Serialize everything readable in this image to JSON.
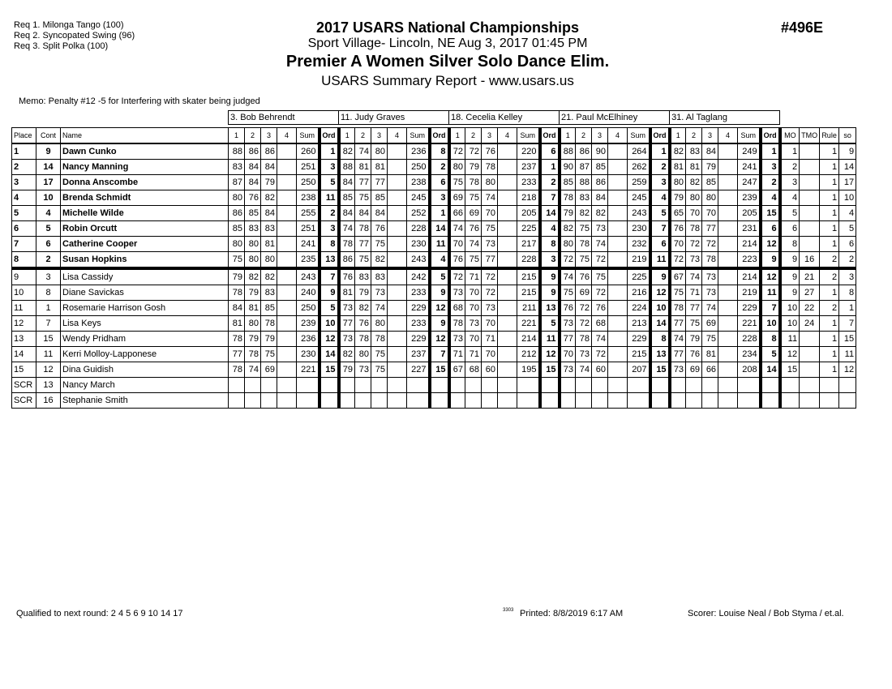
{
  "requirements": [
    "Req  1.  Milonga Tango (100)",
    "Req  2.  Syncopated Swing (96)",
    "Req  3.  Split Polka (100)"
  ],
  "header": {
    "title": "2017 USARS National Championships",
    "venue": "Sport Village- Lincoln, NE  Aug 3, 2017  01:45 PM",
    "event": "Premier A Women Silver Solo Dance Elim.",
    "report": "USARS Summary Report - www.usars.us",
    "event_number": "#496E"
  },
  "memo": "Memo: Penalty #12 -5 for Interfering with skater being judged",
  "judges": [
    "3.  Bob Behrendt",
    "11.  Judy Graves",
    "18.  Cecelia Kelley",
    "21.  Paul McElhiney",
    "31.  Al Taglang"
  ],
  "columns": {
    "place": "Place",
    "cont": "Cont",
    "name": "Name",
    "judge_cols": [
      "1",
      "2",
      "3",
      "4",
      "Sum",
      "Ord"
    ],
    "extra": [
      "MO",
      "TMO",
      "Rule",
      "so"
    ]
  },
  "rows": [
    {
      "place": "1",
      "cont": "9",
      "name": "Dawn Cunko",
      "j": [
        [
          88,
          86,
          86,
          "",
          260,
          1
        ],
        [
          82,
          74,
          80,
          "",
          236,
          8
        ],
        [
          72,
          72,
          76,
          "",
          220,
          6
        ],
        [
          88,
          86,
          90,
          "",
          264,
          1
        ],
        [
          82,
          83,
          84,
          "",
          249,
          1
        ]
      ],
      "mo": "1",
      "tmo": "",
      "rule": "1",
      "so": "9"
    },
    {
      "place": "2",
      "cont": "14",
      "name": "Nancy Manning",
      "j": [
        [
          83,
          84,
          84,
          "",
          251,
          3
        ],
        [
          88,
          81,
          81,
          "",
          250,
          2
        ],
        [
          80,
          79,
          78,
          "",
          237,
          1
        ],
        [
          90,
          87,
          85,
          "",
          262,
          2
        ],
        [
          81,
          81,
          79,
          "",
          241,
          3
        ]
      ],
      "mo": "2",
      "tmo": "",
      "rule": "1",
      "so": "14"
    },
    {
      "place": "3",
      "cont": "17",
      "name": "Donna Anscombe",
      "j": [
        [
          87,
          84,
          79,
          "",
          250,
          5
        ],
        [
          84,
          77,
          77,
          "",
          238,
          6
        ],
        [
          75,
          78,
          80,
          "",
          233,
          2
        ],
        [
          85,
          88,
          86,
          "",
          259,
          3
        ],
        [
          80,
          82,
          85,
          "",
          247,
          2
        ]
      ],
      "mo": "3",
      "tmo": "",
      "rule": "1",
      "so": "17"
    },
    {
      "place": "4",
      "cont": "10",
      "name": "Brenda Schmidt",
      "j": [
        [
          80,
          76,
          82,
          "",
          238,
          11
        ],
        [
          85,
          75,
          85,
          "",
          245,
          3
        ],
        [
          69,
          75,
          74,
          "",
          218,
          7
        ],
        [
          78,
          83,
          84,
          "",
          245,
          4
        ],
        [
          79,
          80,
          80,
          "",
          239,
          4
        ]
      ],
      "mo": "4",
      "tmo": "",
      "rule": "1",
      "so": "10"
    },
    {
      "place": "5",
      "cont": "4",
      "name": "Michelle Wilde",
      "j": [
        [
          86,
          85,
          84,
          "",
          255,
          2
        ],
        [
          84,
          84,
          84,
          "",
          252,
          1
        ],
        [
          66,
          69,
          70,
          "",
          205,
          14
        ],
        [
          79,
          82,
          82,
          "",
          243,
          5
        ],
        [
          65,
          70,
          70,
          "",
          205,
          15
        ]
      ],
      "mo": "5",
      "tmo": "",
      "rule": "1",
      "so": "4"
    },
    {
      "place": "6",
      "cont": "5",
      "name": "Robin Orcutt",
      "j": [
        [
          85,
          83,
          83,
          "",
          251,
          3
        ],
        [
          74,
          78,
          76,
          "",
          228,
          14
        ],
        [
          74,
          76,
          75,
          "",
          225,
          4
        ],
        [
          82,
          75,
          73,
          "",
          230,
          7
        ],
        [
          76,
          78,
          77,
          "",
          231,
          6
        ]
      ],
      "mo": "6",
      "tmo": "",
      "rule": "1",
      "so": "5"
    },
    {
      "place": "7",
      "cont": "6",
      "name": "Catherine Cooper",
      "j": [
        [
          80,
          80,
          81,
          "",
          241,
          8
        ],
        [
          78,
          77,
          75,
          "",
          230,
          11
        ],
        [
          70,
          74,
          73,
          "",
          217,
          8
        ],
        [
          80,
          78,
          74,
          "",
          232,
          6
        ],
        [
          70,
          72,
          72,
          "",
          214,
          12
        ]
      ],
      "mo": "8",
      "tmo": "",
      "rule": "1",
      "so": "6"
    },
    {
      "place": "8",
      "cont": "2",
      "name": "Susan Hopkins",
      "j": [
        [
          75,
          80,
          80,
          "",
          235,
          13
        ],
        [
          86,
          75,
          82,
          "",
          243,
          4
        ],
        [
          76,
          75,
          77,
          "",
          228,
          3
        ],
        [
          72,
          75,
          72,
          "",
          219,
          11
        ],
        [
          72,
          73,
          78,
          "",
          223,
          9
        ]
      ],
      "mo": "9",
      "tmo": "16",
      "rule": "2",
      "so": "2"
    },
    {
      "place": "9",
      "cont": "3",
      "name": "Lisa Cassidy",
      "j": [
        [
          79,
          82,
          82,
          "",
          243,
          7
        ],
        [
          76,
          83,
          83,
          "",
          242,
          5
        ],
        [
          72,
          71,
          72,
          "",
          215,
          9
        ],
        [
          74,
          76,
          75,
          "",
          225,
          9
        ],
        [
          67,
          74,
          73,
          "",
          214,
          12
        ]
      ],
      "mo": "9",
      "tmo": "21",
      "rule": "2",
      "so": "3"
    },
    {
      "place": "10",
      "cont": "8",
      "name": "Diane Savickas",
      "j": [
        [
          78,
          79,
          83,
          "",
          240,
          9
        ],
        [
          81,
          79,
          73,
          "",
          233,
          9
        ],
        [
          73,
          70,
          72,
          "",
          215,
          9
        ],
        [
          75,
          69,
          72,
          "",
          216,
          12
        ],
        [
          75,
          71,
          73,
          "",
          219,
          11
        ]
      ],
      "mo": "9",
      "tmo": "27",
      "rule": "1",
      "so": "8"
    },
    {
      "place": "11",
      "cont": "1",
      "name": "Rosemarie Harrison Gosh",
      "j": [
        [
          84,
          81,
          85,
          "",
          250,
          5
        ],
        [
          73,
          82,
          74,
          "",
          229,
          12
        ],
        [
          68,
          70,
          73,
          "",
          211,
          13
        ],
        [
          76,
          72,
          76,
          "",
          224,
          10
        ],
        [
          78,
          77,
          74,
          "",
          229,
          7
        ]
      ],
      "mo": "10",
      "tmo": "22",
      "rule": "2",
      "so": "1"
    },
    {
      "place": "12",
      "cont": "7",
      "name": "Lisa Keys",
      "j": [
        [
          81,
          80,
          78,
          "",
          239,
          10
        ],
        [
          77,
          76,
          80,
          "",
          233,
          9
        ],
        [
          78,
          73,
          70,
          "",
          221,
          5
        ],
        [
          73,
          72,
          68,
          "",
          213,
          14
        ],
        [
          77,
          75,
          69,
          "",
          221,
          10
        ]
      ],
      "mo": "10",
      "tmo": "24",
      "rule": "1",
      "so": "7"
    },
    {
      "place": "13",
      "cont": "15",
      "name": "Wendy Pridham",
      "j": [
        [
          78,
          79,
          79,
          "",
          236,
          12
        ],
        [
          73,
          78,
          78,
          "",
          229,
          12
        ],
        [
          73,
          70,
          71,
          "",
          214,
          11
        ],
        [
          77,
          78,
          74,
          "",
          229,
          8
        ],
        [
          74,
          79,
          75,
          "",
          228,
          8
        ]
      ],
      "mo": "11",
      "tmo": "",
      "rule": "1",
      "so": "15"
    },
    {
      "place": "14",
      "cont": "11",
      "name": "Kerri Molloy-Lapponese",
      "j": [
        [
          77,
          78,
          75,
          "",
          230,
          14
        ],
        [
          82,
          80,
          75,
          "",
          237,
          7
        ],
        [
          71,
          71,
          70,
          "",
          212,
          12
        ],
        [
          70,
          73,
          72,
          "",
          215,
          13
        ],
        [
          77,
          76,
          81,
          "",
          234,
          5
        ]
      ],
      "mo": "12",
      "tmo": "",
      "rule": "1",
      "so": "11"
    },
    {
      "place": "15",
      "cont": "12",
      "name": "Dina Guidish",
      "j": [
        [
          78,
          74,
          69,
          "",
          221,
          15
        ],
        [
          79,
          73,
          75,
          "",
          227,
          15
        ],
        [
          67,
          68,
          60,
          "",
          195,
          15
        ],
        [
          73,
          74,
          60,
          "",
          207,
          15
        ],
        [
          73,
          69,
          66,
          "",
          208,
          14
        ]
      ],
      "mo": "15",
      "tmo": "",
      "rule": "1",
      "so": "12"
    },
    {
      "place": "SCR",
      "cont": "13",
      "name": "Nancy March",
      "j": [
        [
          "",
          "",
          "",
          "",
          "",
          ""
        ],
        [
          "",
          "",
          "",
          "",
          "",
          ""
        ],
        [
          "",
          "",
          "",
          "",
          "",
          ""
        ],
        [
          "",
          "",
          "",
          "",
          "",
          ""
        ],
        [
          "",
          "",
          "",
          "",
          "",
          ""
        ]
      ],
      "mo": "",
      "tmo": "",
      "rule": "",
      "so": ""
    },
    {
      "place": "SCR",
      "cont": "16",
      "name": "Stephanie Smith",
      "j": [
        [
          "",
          "",
          "",
          "",
          "",
          ""
        ],
        [
          "",
          "",
          "",
          "",
          "",
          ""
        ],
        [
          "",
          "",
          "",
          "",
          "",
          ""
        ],
        [
          "",
          "",
          "",
          "",
          "",
          ""
        ],
        [
          "",
          "",
          "",
          "",
          "",
          ""
        ]
      ],
      "mo": "",
      "tmo": "",
      "rule": "",
      "so": ""
    }
  ],
  "qualified_count": 8,
  "footer": {
    "qualified": "Qualified to next round:   2 4 5 6 9 10 14 17",
    "code": "3303",
    "printed": "Printed:  8/8/2019  6:17 AM",
    "scorer": "Scorer:   Louise Neal / Bob Styma / et.al."
  }
}
